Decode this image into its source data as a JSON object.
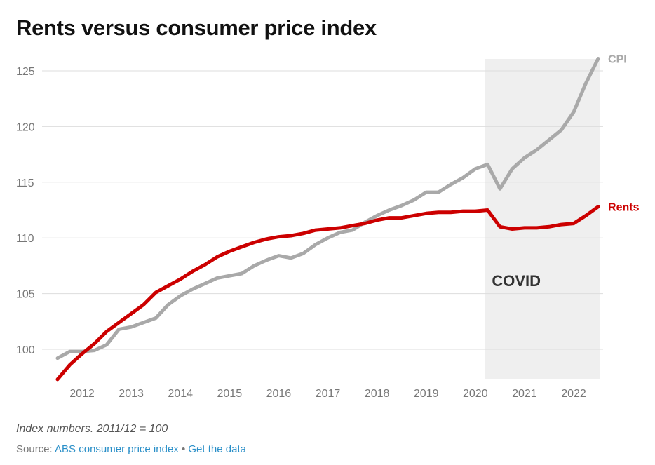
{
  "title": "Rents versus consumer price index",
  "note": "Index numbers. 2011/12 = 100",
  "source": {
    "prefix": "Source: ",
    "link1": "ABS consumer price index",
    "separator": " • ",
    "link2": "Get the data"
  },
  "colors": {
    "cpi": "#a9a9a9",
    "rents": "#cc0000",
    "grid": "#dddddd",
    "covid_shade": "#efefef"
  },
  "chart_data": {
    "type": "line",
    "title": "Rents versus consumer price index",
    "xlabel": "",
    "ylabel": "",
    "ylim": [
      97.5,
      126.5
    ],
    "xlim": [
      2011.5,
      2022.5
    ],
    "y_ticks": [
      100,
      105,
      110,
      115,
      120,
      125
    ],
    "x_ticks": [
      2012,
      2013,
      2014,
      2015,
      2016,
      2017,
      2018,
      2019,
      2020,
      2021,
      2022
    ],
    "grid": true,
    "legend": "direct labels at line ends",
    "annotation": {
      "label": "COVID",
      "x_start": 2020.25,
      "x_end": 2022.5
    },
    "x": [
      2011.5,
      2011.75,
      2012.0,
      2012.25,
      2012.5,
      2012.75,
      2013.0,
      2013.25,
      2013.5,
      2013.75,
      2014.0,
      2014.25,
      2014.5,
      2014.75,
      2015.0,
      2015.25,
      2015.5,
      2015.75,
      2016.0,
      2016.25,
      2016.5,
      2016.75,
      2017.0,
      2017.25,
      2017.5,
      2017.75,
      2018.0,
      2018.25,
      2018.5,
      2018.75,
      2019.0,
      2019.25,
      2019.5,
      2019.75,
      2020.0,
      2020.25,
      2020.5,
      2020.75,
      2021.0,
      2021.25,
      2021.5,
      2021.75,
      2022.0,
      2022.25,
      2022.5
    ],
    "series": [
      {
        "name": "CPI",
        "values": [
          99.2,
          99.8,
          99.8,
          99.9,
          100.4,
          101.8,
          102.0,
          102.4,
          102.8,
          104.0,
          104.8,
          105.4,
          105.9,
          106.4,
          106.6,
          106.8,
          107.5,
          108.0,
          108.4,
          108.2,
          108.6,
          109.4,
          110.0,
          110.5,
          110.7,
          111.4,
          112.0,
          112.5,
          112.9,
          113.4,
          114.1,
          114.1,
          114.8,
          115.4,
          116.2,
          116.6,
          114.4,
          116.2,
          117.2,
          117.9,
          118.8,
          119.7,
          121.3,
          123.9,
          126.1
        ]
      },
      {
        "name": "Rents",
        "values": [
          97.3,
          98.6,
          99.6,
          100.5,
          101.6,
          102.4,
          103.2,
          104.0,
          105.1,
          105.7,
          106.3,
          107.0,
          107.6,
          108.3,
          108.8,
          109.2,
          109.6,
          109.9,
          110.1,
          110.2,
          110.4,
          110.7,
          110.8,
          110.9,
          111.1,
          111.3,
          111.6,
          111.8,
          111.8,
          112.0,
          112.2,
          112.3,
          112.3,
          112.4,
          112.4,
          112.5,
          111.0,
          110.8,
          110.9,
          110.9,
          111.0,
          111.2,
          111.3,
          112.0,
          112.8
        ]
      }
    ]
  }
}
